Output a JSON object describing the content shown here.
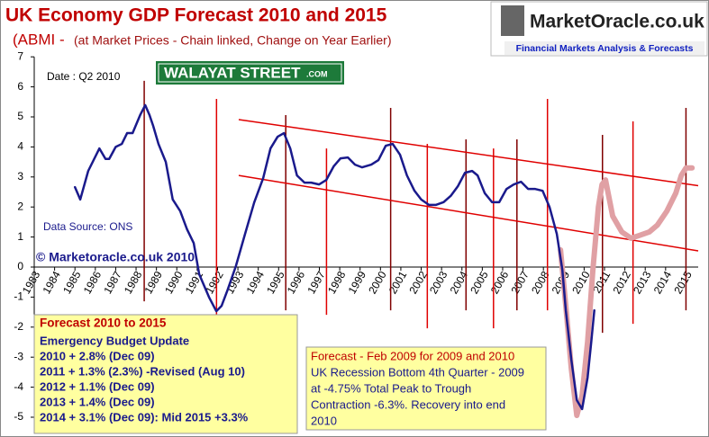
{
  "chart_data": {
    "type": "line",
    "title": "UK Economy GDP Forecast 2010 and 2015",
    "subtitle_prefix": "(ABMI -",
    "subtitle": "(at Market Prices - Chain linked, Change on Year Earlier)",
    "logo": {
      "name": "MarketOracle.co.uk",
      "tagline": "Financial Markets Analysis & Forecasts"
    },
    "date_label": "Date : Q2 2010",
    "banner": {
      "name": "WALAYAT STREET",
      "suffix": ".COM"
    },
    "source": "Data Source: ONS",
    "copyright": "© Marketoracle.co.uk  2010",
    "box_budget": {
      "title": "Forecast 2010 to 2015",
      "lines": [
        "Emergency Budget Update",
        "2010 + 2.8% (Dec 09)",
        "2011 + 1.3% (2.3%) -Revised (Aug 10)",
        "2012 + 1.1% (Dec 09)",
        "2013 + 1.4% (Dec 09)",
        "2014 + 3.1% (Dec 09): Mid 2015 +3.3%"
      ]
    },
    "box_recession": {
      "title": "Forecast - Feb  2009 for 2009 and 2010",
      "lines": [
        "UK Recession Bottom  4th Quarter - 2009",
        "at -4.75%  Total Peak to Trough",
        "Contraction -6.3%.  Recovery into end",
        "2010"
      ]
    },
    "xlim": [
      1983,
      2015.6
    ],
    "xticks": [
      1983,
      1984,
      1985,
      1986,
      1987,
      1988,
      1989,
      1990,
      1991,
      1992,
      1993,
      1994,
      1995,
      1996,
      1997,
      1998,
      1999,
      2000,
      2001,
      2002,
      2003,
      2004,
      2005,
      2006,
      2007,
      2008,
      2009,
      2010,
      2011,
      2012,
      2013,
      2014,
      2015
    ],
    "ylim": [
      -5,
      7
    ],
    "yticks": [
      -5,
      -4,
      -3,
      -2,
      -1,
      0,
      1,
      2,
      3,
      4,
      5,
      6,
      7
    ],
    "series": [
      {
        "color": "#1a1a8c",
        "line_width": 2.5,
        "x": [
          1985.0,
          1985.26,
          1985.65,
          1986.2,
          1986.5,
          1986.68,
          1987.0,
          1987.3,
          1987.56,
          1987.83,
          1988.2,
          1988.45,
          1988.66,
          1988.84,
          1989.1,
          1989.46,
          1989.8,
          1990.17,
          1990.5,
          1990.83,
          1991.1,
          1991.58,
          1991.94,
          1992.2,
          1992.5,
          1992.9,
          1993.35,
          1993.8,
          1994.24,
          1994.6,
          1994.95,
          1995.26,
          1995.57,
          1995.9,
          1996.27,
          1996.6,
          1996.98,
          1997.34,
          1997.7,
          1998.04,
          1998.4,
          1998.75,
          1999.1,
          1999.55,
          1999.9,
          2000.26,
          2000.6,
          2000.96,
          2001.3,
          2001.67,
          2002.0,
          2002.38,
          2002.73,
          2003.1,
          2003.45,
          2003.8,
          2004.15,
          2004.5,
          2004.77,
          2005.12,
          2005.48,
          2005.83,
          2006.19,
          2006.54,
          2006.9,
          2007.25,
          2007.6,
          2007.96,
          2008.3,
          2008.66,
          2008.93,
          2009.1,
          2009.37,
          2009.64,
          2009.9,
          2010.17,
          2010.35,
          2010.5
        ],
        "values": [
          2.66,
          2.25,
          3.2,
          3.95,
          3.6,
          3.6,
          4.0,
          4.1,
          4.46,
          4.46,
          5.06,
          5.39,
          5.06,
          4.7,
          4.1,
          3.5,
          2.25,
          1.86,
          1.26,
          0.8,
          -0.24,
          -1.0,
          -1.47,
          -1.29,
          -0.75,
          0.03,
          1.1,
          2.15,
          2.96,
          3.95,
          4.34,
          4.46,
          3.95,
          3.05,
          2.81,
          2.81,
          2.75,
          2.9,
          3.35,
          3.62,
          3.65,
          3.41,
          3.32,
          3.41,
          3.56,
          4.04,
          4.1,
          3.74,
          3.05,
          2.54,
          2.25,
          2.07,
          2.07,
          2.16,
          2.37,
          2.69,
          3.14,
          3.2,
          3.05,
          2.46,
          2.16,
          2.16,
          2.6,
          2.75,
          2.84,
          2.6,
          2.6,
          2.54,
          2.0,
          1.1,
          -0.09,
          -1.44,
          -3.08,
          -4.43,
          -4.73,
          -3.68,
          -2.49,
          -1.44
        ]
      },
      {
        "color": "#e0a0a4",
        "line_width": 6,
        "x": [
          2008.84,
          2009.1,
          2009.37,
          2009.64,
          2009.9,
          2010.17,
          2010.43,
          2010.7,
          2010.88,
          2011.05,
          2011.4,
          2011.85,
          2012.3,
          2012.7,
          2013.2,
          2013.6,
          2014.06,
          2014.5,
          2014.77,
          2015.0,
          2015.3
        ],
        "values": [
          0.57,
          -1.29,
          -3.38,
          -4.94,
          -4.28,
          -2.49,
          -0.09,
          2.0,
          2.75,
          2.9,
          1.7,
          1.17,
          0.96,
          1.05,
          1.17,
          1.4,
          1.86,
          2.46,
          3.05,
          3.3,
          3.3
        ]
      }
    ],
    "trend_lines": [
      {
        "color": "#e00000",
        "x": [
          1993.04,
          2015.6
        ],
        "y": [
          4.91,
          2.71
        ]
      },
      {
        "color": "#e00000",
        "x": [
          1993.04,
          2015.6
        ],
        "y": [
          3.05,
          0.54
        ]
      }
    ],
    "vertical_lines": [
      {
        "color": "#800000",
        "x": 1988.4,
        "y": [
          -1.14,
          6.2
        ]
      },
      {
        "color": "#800000",
        "x": 1995.35,
        "y": [
          -1.44,
          5.06
        ]
      },
      {
        "color": "#800000",
        "x": 2000.5,
        "y": [
          -1.44,
          5.3
        ]
      },
      {
        "color": "#800000",
        "x": 2004.2,
        "y": [
          -1.44,
          4.25
        ]
      },
      {
        "color": "#800000",
        "x": 2006.7,
        "y": [
          -1.44,
          4.25
        ]
      },
      {
        "color": "#800000",
        "x": 2010.9,
        "y": [
          -2.19,
          4.4
        ]
      },
      {
        "color": "#800000",
        "x": 2015.0,
        "y": [
          -1.44,
          5.3
        ]
      },
      {
        "color": "#e00000",
        "x": 1991.95,
        "y": [
          -1.59,
          5.6
        ]
      },
      {
        "color": "#e00000",
        "x": 1997.35,
        "y": [
          -1.59,
          3.95
        ]
      },
      {
        "color": "#e00000",
        "x": 2002.3,
        "y": [
          -2.04,
          4.1
        ]
      },
      {
        "color": "#e00000",
        "x": 2005.55,
        "y": [
          -2.04,
          3.95
        ]
      },
      {
        "color": "#e00000",
        "x": 2008.2,
        "y": [
          -1.44,
          5.6
        ]
      },
      {
        "color": "#e00000",
        "x": 2012.4,
        "y": [
          -1.89,
          4.85
        ]
      }
    ]
  }
}
